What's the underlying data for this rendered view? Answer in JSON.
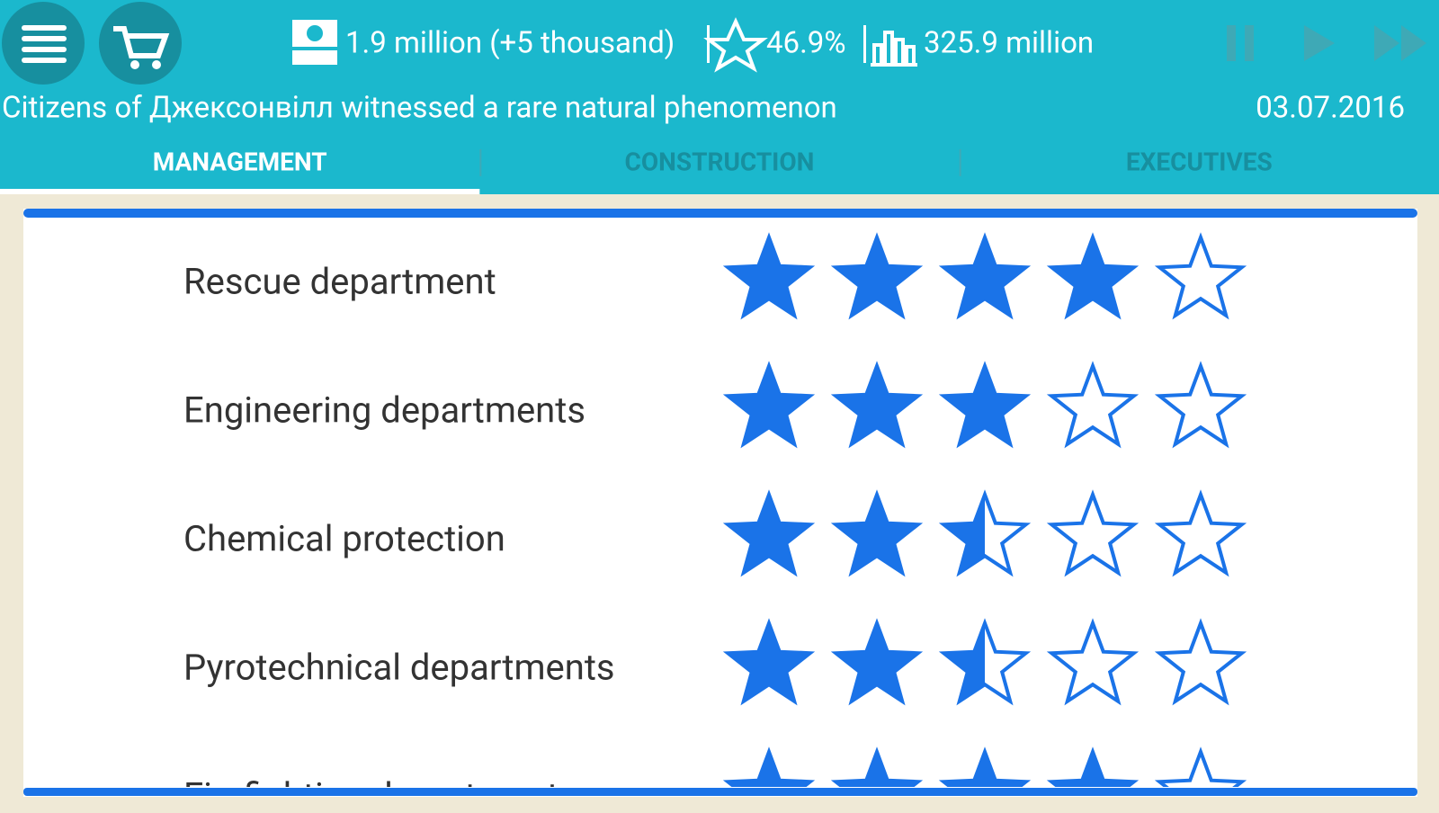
{
  "top_bar": {
    "money": "1.9 million (+5 thousand)",
    "approval": "46.9%",
    "population": "325.9 million",
    "news": "Citizens of Джексонвілл witnessed a rare natural phenomenon",
    "date": "03.07.2016"
  },
  "tabs": [
    "MANAGEMENT",
    "CONSTRUCTION",
    "EXECUTIVES"
  ],
  "max_stars": 5,
  "departments": [
    {
      "name": "Rescue department",
      "rating": 4
    },
    {
      "name": "Engineering departments",
      "rating": 3
    },
    {
      "name": "Chemical protection",
      "rating": 2.5
    },
    {
      "name": "Pyrotechnical departments",
      "rating": 2.5
    },
    {
      "name": "Firefighting departments",
      "rating": 4
    }
  ]
}
